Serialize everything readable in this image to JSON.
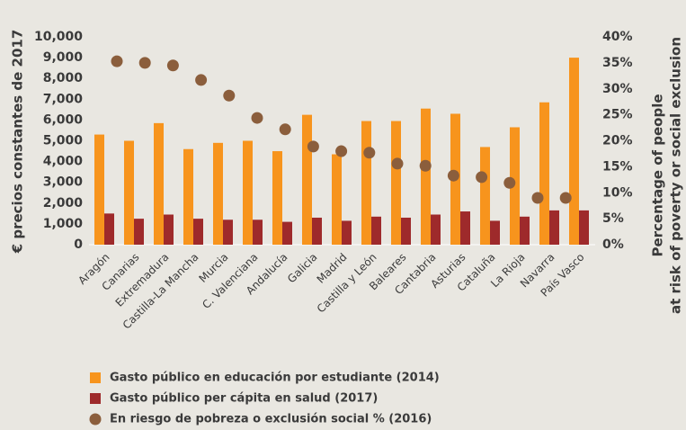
{
  "chart_data": {
    "type": "bar",
    "ylabel": "€ precios constantes de 2017",
    "y2label": [
      "Percentage of people",
      "at risk of poverty or social exclusion"
    ],
    "categories": [
      "Aragón",
      "Canarias",
      "Extremadura",
      "Castilla-La Mancha",
      "Murcia",
      "C. Valenciana",
      "Andalucía",
      "Galicia",
      "Madrid",
      "Castilla y León",
      "Baleares",
      "Cantabria",
      "Asturias",
      "Cataluña",
      "La Rioja",
      "Navarra",
      "País Vasco"
    ],
    "series": [
      {
        "name": "Gasto público en educación por estudiante (2014)",
        "color": "#f7941d",
        "type": "bar",
        "values": [
          5300,
          5000,
          5850,
          4600,
          4900,
          5000,
          4500,
          6250,
          4350,
          5950,
          5950,
          6550,
          6300,
          4700,
          5650,
          6850,
          9000
        ]
      },
      {
        "name": "Gasto público per cápita en salud (2017)",
        "color": "#9e2a2b",
        "type": "bar",
        "values": [
          1500,
          1250,
          1450,
          1250,
          1200,
          1200,
          1100,
          1300,
          1150,
          1350,
          1300,
          1450,
          1600,
          1150,
          1350,
          1650,
          1650
        ]
      },
      {
        "name": "En riesgo de pobreza o exclusión social % (2016)",
        "color": "#8b5e3c",
        "type": "scatter",
        "axis": "y2",
        "values": [
          35.3,
          35,
          34.5,
          31.7,
          28.7,
          24.4,
          22.2,
          18.9,
          18,
          17.7,
          15.6,
          15.2,
          13.3,
          13,
          11.9,
          9,
          9
        ]
      }
    ],
    "ylim": [
      0,
      10000
    ],
    "yticks": [
      0,
      {
        "value": 1000,
        "label": "1,000"
      },
      {
        "value": 2000,
        "label": "2,000"
      },
      {
        "value": 3000,
        "label": "3,000"
      },
      {
        "value": 4000,
        "label": "4,000"
      },
      {
        "value": 5000,
        "label": "5,000"
      },
      {
        "value": 6000,
        "label": "6,000"
      },
      {
        "value": 7000,
        "label": "7,000"
      },
      {
        "value": 8000,
        "label": "8,000"
      },
      {
        "value": 9000,
        "label": "9,000"
      },
      {
        "value": 10000,
        "label": "10,000"
      }
    ],
    "y2lim": [
      0,
      40
    ],
    "y2ticks": [
      {
        "value": 0,
        "label": "0%"
      },
      {
        "value": 5,
        "label": "5%"
      },
      {
        "value": 10,
        "label": "10%"
      },
      {
        "value": 15,
        "label": "15%"
      },
      {
        "value": 20,
        "label": "20%"
      },
      {
        "value": 25,
        "label": "25%"
      },
      {
        "value": 30,
        "label": "30%"
      },
      {
        "value": 35,
        "label": "35%"
      },
      {
        "value": 40,
        "label": "40%"
      }
    ],
    "grid": false
  }
}
